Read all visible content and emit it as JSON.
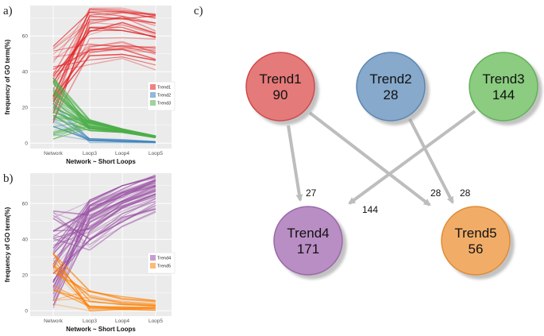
{
  "panels": {
    "a": "a)",
    "b": "b)",
    "c": "c)"
  },
  "chart_data": [
    {
      "type": "line",
      "panel": "a",
      "xlabel": "Network ~ Short Loops",
      "ylabel": "frequency of GO term(%)",
      "categories": [
        "Network",
        "Loop3",
        "Loop4",
        "Loop5"
      ],
      "ylim": [
        -3,
        77
      ],
      "yticks": [
        0,
        20,
        40,
        60
      ],
      "grid": true,
      "legend_position": "right",
      "series": [
        {
          "name": "Trend1",
          "color": "#e41a1c",
          "count": 90,
          "line_range": {
            "start": [
              5,
              55
            ],
            "loop3": [
              44,
              76
            ],
            "loop4": [
              45,
              76
            ],
            "loop5": [
              41,
              73
            ]
          }
        },
        {
          "name": "Trend2",
          "color": "#377eb8",
          "count": 28,
          "line_range": {
            "start": [
              4,
              30
            ],
            "loop3": [
              0,
              3
            ],
            "loop4": [
              0,
              2
            ],
            "loop5": [
              0,
              1
            ]
          }
        },
        {
          "name": "Trend3",
          "color": "#4daf4a",
          "count": 144,
          "line_range": {
            "start": [
              2,
              38
            ],
            "loop3": [
              7,
              13
            ],
            "loop4": [
              6,
              8
            ],
            "loop5": [
              3,
              4
            ]
          }
        }
      ]
    },
    {
      "type": "line",
      "panel": "b",
      "xlabel": "Network ~ Short Loops",
      "ylabel": "frequency of GO term(%)",
      "categories": [
        "Network",
        "Loop3",
        "Loop4",
        "Loop5"
      ],
      "ylim": [
        -3,
        77
      ],
      "yticks": [
        0,
        20,
        40,
        60
      ],
      "grid": true,
      "legend_position": "right",
      "series": [
        {
          "name": "Trend4",
          "color": "#984ea3",
          "count": 171,
          "line_range": {
            "start": [
              1,
              56
            ],
            "loop3": [
              34,
              62
            ],
            "loop4": [
              47,
              70
            ],
            "loop5": [
              55,
              76
            ]
          }
        },
        {
          "name": "Trend5",
          "color": "#ff7f00",
          "count": 56,
          "line_range": {
            "start": [
              3,
              33
            ],
            "loop3": [
              0,
              12
            ],
            "loop4": [
              0,
              8
            ],
            "loop5": [
              0,
              6
            ]
          }
        }
      ]
    }
  ],
  "graph": {
    "nodes": [
      {
        "id": "trend1",
        "name": "Trend1",
        "count": "90",
        "fill": "#e57a7a",
        "stroke": "#d04a4a"
      },
      {
        "id": "trend2",
        "name": "Trend2",
        "count": "28",
        "fill": "#86a9cc",
        "stroke": "#5c87b2"
      },
      {
        "id": "trend3",
        "name": "Trend3",
        "count": "144",
        "fill": "#8bcc80",
        "stroke": "#63b05a"
      },
      {
        "id": "trend4",
        "name": "Trend4",
        "count": "171",
        "fill": "#b98ec4",
        "stroke": "#9a68a8"
      },
      {
        "id": "trend5",
        "name": "Trend5",
        "count": "56",
        "fill": "#f1ad68",
        "stroke": "#e08c30"
      }
    ],
    "edges": [
      {
        "from": "trend1",
        "to": "trend4",
        "label": "27"
      },
      {
        "from": "trend1",
        "to": "trend5",
        "label": "28"
      },
      {
        "from": "trend2",
        "to": "trend5",
        "label": "28"
      },
      {
        "from": "trend3",
        "to": "trend4",
        "label": "144"
      }
    ]
  }
}
